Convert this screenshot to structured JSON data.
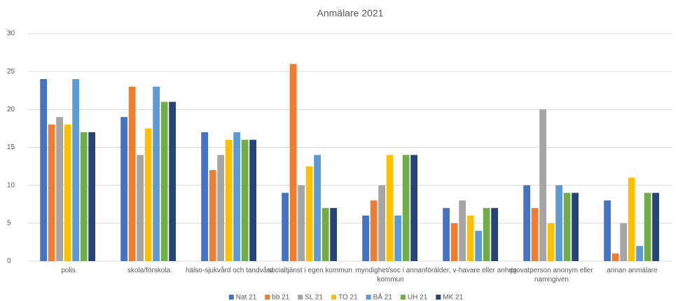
{
  "chart_data": {
    "type": "bar",
    "title": "Anmälare 2021",
    "categories": [
      "polis",
      "skola/förskola",
      "hälso-sjukvård och tandvård",
      "socialtjänst i egen kommun",
      "myndighet/soc i annan kommun",
      "förälder, v-havare eller anhrig",
      "provatperson anonym eller namngiven",
      "annan anmälare"
    ],
    "series": [
      {
        "name": "Nat 21",
        "color": "#4472c4",
        "values": [
          24,
          19,
          17,
          9,
          6,
          7,
          10,
          8
        ]
      },
      {
        "name": "bb 21",
        "color": "#ed7d31",
        "values": [
          18,
          23,
          12,
          26,
          8,
          5,
          7,
          1
        ]
      },
      {
        "name": "SL 21",
        "color": "#a5a5a5",
        "values": [
          19,
          14,
          14,
          10,
          10,
          8,
          20,
          5
        ]
      },
      {
        "name": "TO 21",
        "color": "#ffc000",
        "values": [
          18,
          17.5,
          16,
          12.5,
          14,
          6,
          5,
          11
        ]
      },
      {
        "name": "BÅ 21",
        "color": "#5b9bd5",
        "values": [
          24,
          23,
          17,
          14,
          6,
          4,
          10,
          2
        ]
      },
      {
        "name": "UH 21",
        "color": "#70ad47",
        "values": [
          17,
          21,
          16,
          7,
          14,
          7,
          9,
          9
        ]
      },
      {
        "name": "MK 21",
        "color": "#264478",
        "values": [
          17,
          21,
          16,
          7,
          14,
          7,
          9,
          9
        ]
      }
    ],
    "ylim": [
      0,
      30
    ],
    "yticks": [
      0,
      5,
      10,
      15,
      20,
      25,
      30
    ],
    "grid": true,
    "legend": "bottom"
  }
}
